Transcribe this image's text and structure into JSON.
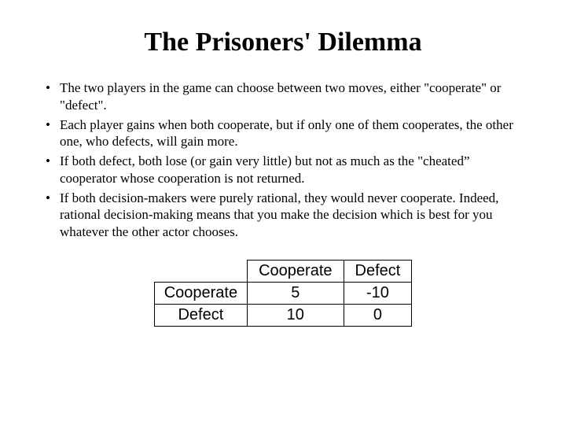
{
  "title": "The Prisoners' Dilemma",
  "bullets": [
    "The two players in the game can choose between two moves, either \"cooperate\" or \"defect\".",
    "Each player gains when both cooperate, but if only one of them cooperates, the other one, who defects, will gain more.",
    "If both defect, both lose (or gain very little) but not as much as the \"cheated” cooperator whose cooperation is not returned.",
    "If both decision-makers were purely rational, they would never cooperate. Indeed, rational decision-making means that you make the decision which is best for you whatever the other actor chooses."
  ],
  "table": {
    "type": "table",
    "columns": [
      "",
      "Cooperate",
      "Defect"
    ],
    "rows": [
      {
        "label": "Cooperate",
        "values": [
          "5",
          "-10"
        ]
      },
      {
        "label": "Defect",
        "values": [
          "10",
          "0"
        ]
      }
    ],
    "border_color": "#000000",
    "font_family": "Arial",
    "header_fontsize": 20,
    "cell_fontsize": 20,
    "background_color": "#ffffff",
    "text_color": "#000000"
  },
  "page": {
    "background_color": "#ffffff",
    "title_fontsize": 34,
    "title_fontweight": "bold",
    "body_fontsize": 17,
    "body_font_family": "Times New Roman",
    "text_color": "#000000"
  }
}
